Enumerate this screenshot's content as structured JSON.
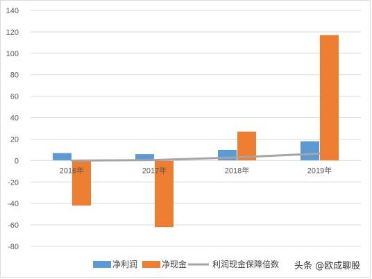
{
  "chart_data": {
    "type": "bar",
    "categories": [
      "2016年",
      "2017年",
      "2018年",
      "2019年"
    ],
    "series": [
      {
        "name": "净利润",
        "kind": "bar",
        "color": "#5b9bd5",
        "values": [
          7,
          6,
          10,
          18
        ]
      },
      {
        "name": "净现金",
        "kind": "bar",
        "color": "#ed7d31",
        "values": [
          -42,
          -62,
          27,
          117
        ]
      },
      {
        "name": "利润现金保障倍数",
        "kind": "line",
        "color": "#a5a5a5",
        "values": [
          0,
          0.5,
          3,
          6.5
        ]
      }
    ],
    "y_ticks": [
      140,
      120,
      100,
      80,
      60,
      40,
      20,
      0,
      -20,
      -40,
      -60,
      -80
    ],
    "ylim": [
      -80,
      140
    ],
    "grid": true,
    "legend_position": "bottom"
  },
  "watermark": "头条 @欧成聊股"
}
